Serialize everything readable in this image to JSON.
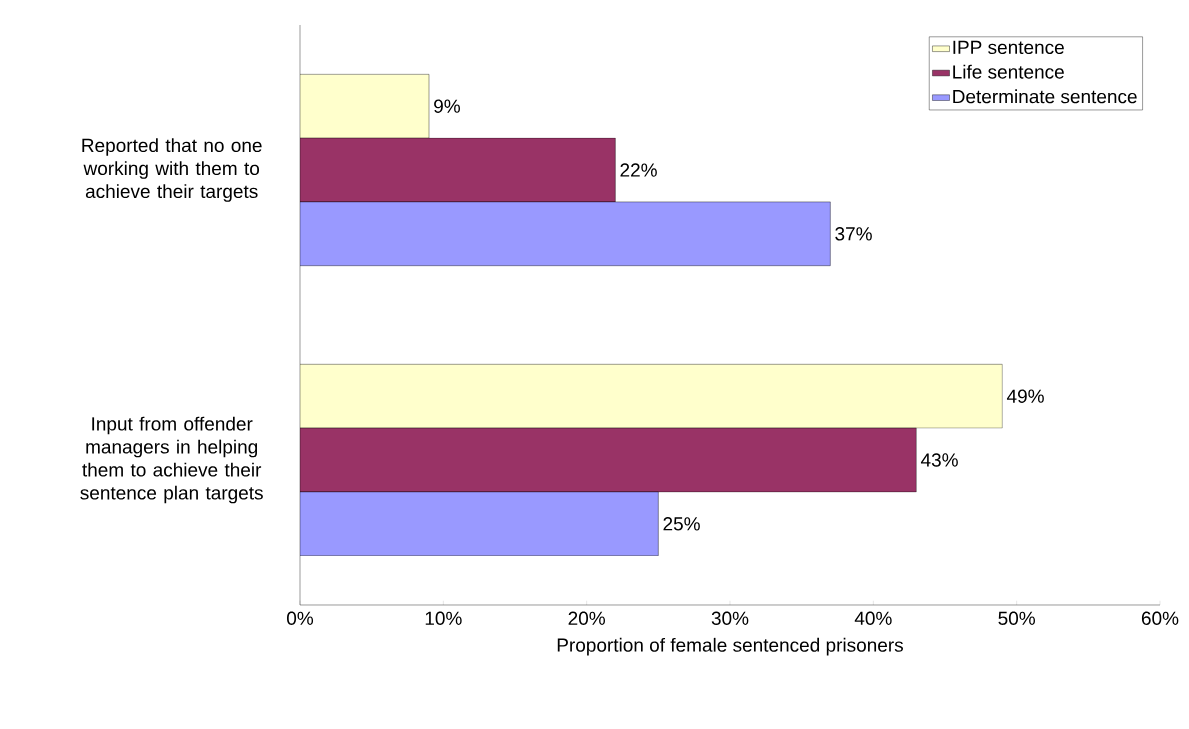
{
  "chart_data": {
    "type": "bar",
    "orientation": "horizontal",
    "xlabel": "Proportion of female sentenced prisoners",
    "categories": [
      "Reported that no one working with them to achieve their targets",
      "Input from offender managers in helping them to achieve their sentence plan targets"
    ],
    "series": [
      {
        "name": "IPP sentence",
        "color": "#ffffcc",
        "values": [
          9,
          49
        ],
        "value_labels": [
          "9%",
          "49%"
        ]
      },
      {
        "name": "Life sentence",
        "color": "#993366",
        "values": [
          22,
          43
        ],
        "value_labels": [
          "22%",
          "43%"
        ]
      },
      {
        "name": "Determinate sentence",
        "color": "#9999ff",
        "values": [
          37,
          25
        ],
        "value_labels": [
          "37%",
          "25%"
        ]
      }
    ],
    "xlim": [
      0,
      60
    ],
    "xticks": [
      {
        "value": 0,
        "label": "0%"
      },
      {
        "value": 10,
        "label": "10%"
      },
      {
        "value": 20,
        "label": "20%"
      },
      {
        "value": 30,
        "label": "30%"
      },
      {
        "value": 40,
        "label": "40%"
      },
      {
        "value": 50,
        "label": "50%"
      },
      {
        "value": 60,
        "label": "60%"
      }
    ],
    "grid": false,
    "legend": "top right"
  }
}
